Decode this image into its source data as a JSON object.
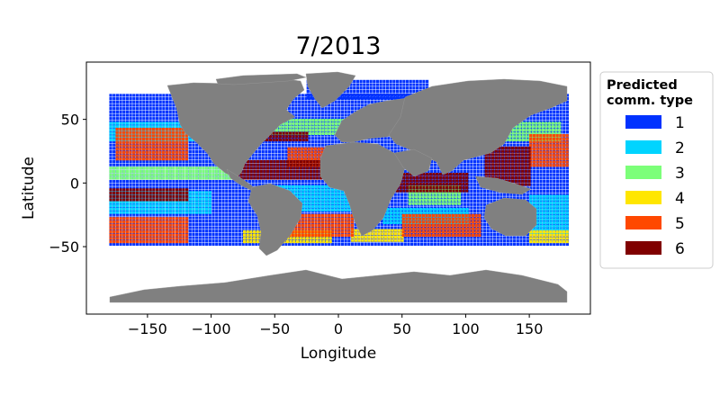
{
  "chart_data": {
    "type": "scatter",
    "title": "7/2013",
    "xlabel": "Longitude",
    "ylabel": "Latitude",
    "xlim": [
      -198,
      198
    ],
    "ylim": [
      -103,
      95
    ],
    "xticks": [
      -150,
      -100,
      -50,
      0,
      50,
      100,
      150
    ],
    "xtick_labels": [
      "−150",
      "−100",
      "−50",
      "0",
      "50",
      "100",
      "150"
    ],
    "yticks": [
      -50,
      0,
      50
    ],
    "ytick_labels": [
      "−50",
      "0",
      "50"
    ],
    "grid": false,
    "legend": {
      "title": [
        "Predicted",
        "comm. type"
      ],
      "placement": "outside-right-top",
      "entries": [
        {
          "label": "1",
          "color": "#0032ff"
        },
        {
          "label": "2",
          "color": "#00d4ff"
        },
        {
          "label": "3",
          "color": "#7cff79"
        },
        {
          "label": "4",
          "color": "#ffe600"
        },
        {
          "label": "5",
          "color": "#ff4800"
        },
        {
          "label": "6",
          "color": "#800000"
        }
      ]
    },
    "land_color": "#808080",
    "ocean_regions": [
      {
        "type": "1",
        "lon": [
          -180,
          180
        ],
        "lat": [
          -47,
          72
        ]
      },
      {
        "type": "1",
        "lon": [
          -25,
          70
        ],
        "lat": [
          68,
          82
        ]
      },
      {
        "type": "2",
        "lon": [
          -180,
          -100
        ],
        "lat": [
          -22,
          -5
        ]
      },
      {
        "type": "2",
        "lon": [
          -180,
          -75
        ],
        "lat": [
          35,
          50
        ]
      },
      {
        "type": "2",
        "lon": [
          -55,
          10
        ],
        "lat": [
          -20,
          0
        ]
      },
      {
        "type": "2",
        "lon": [
          35,
          100
        ],
        "lat": [
          -30,
          -18
        ]
      },
      {
        "type": "2",
        "lon": [
          150,
          180
        ],
        "lat": [
          -38,
          -8
        ]
      },
      {
        "type": "3",
        "lon": [
          -180,
          -85
        ],
        "lat": [
          5,
          15
        ]
      },
      {
        "type": "3",
        "lon": [
          -60,
          10
        ],
        "lat": [
          40,
          52
        ]
      },
      {
        "type": "3",
        "lon": [
          55,
          95
        ],
        "lat": [
          -15,
          -2
        ]
      },
      {
        "type": "3",
        "lon": [
          105,
          175
        ],
        "lat": [
          35,
          50
        ]
      },
      {
        "type": "4",
        "lon": [
          -75,
          -5
        ],
        "lat": [
          -45,
          -36
        ]
      },
      {
        "type": "4",
        "lon": [
          10,
          50
        ],
        "lat": [
          -44,
          -36
        ]
      },
      {
        "type": "4",
        "lon": [
          150,
          180
        ],
        "lat": [
          -45,
          -35
        ]
      },
      {
        "type": "5",
        "lon": [
          -180,
          -120
        ],
        "lat": [
          -45,
          -25
        ]
      },
      {
        "type": "5",
        "lon": [
          -175,
          -120
        ],
        "lat": [
          20,
          45
        ]
      },
      {
        "type": "5",
        "lon": [
          -50,
          10
        ],
        "lat": [
          -40,
          -22
        ]
      },
      {
        "type": "5",
        "lon": [
          -40,
          0
        ],
        "lat": [
          15,
          30
        ]
      },
      {
        "type": "5",
        "lon": [
          50,
          110
        ],
        "lat": [
          -40,
          -24
        ]
      },
      {
        "type": "5",
        "lon": [
          150,
          180
        ],
        "lat": [
          15,
          40
        ]
      },
      {
        "type": "6",
        "lon": [
          -180,
          -120
        ],
        "lat": [
          -12,
          -2
        ]
      },
      {
        "type": "6",
        "lon": [
          -80,
          -15
        ],
        "lat": [
          5,
          20
        ]
      },
      {
        "type": "6",
        "lon": [
          -65,
          -25
        ],
        "lat": [
          35,
          42
        ]
      },
      {
        "type": "6",
        "lon": [
          40,
          100
        ],
        "lat": [
          -5,
          10
        ]
      },
      {
        "type": "6",
        "lon": [
          115,
          150
        ],
        "lat": [
          0,
          30
        ]
      }
    ]
  }
}
